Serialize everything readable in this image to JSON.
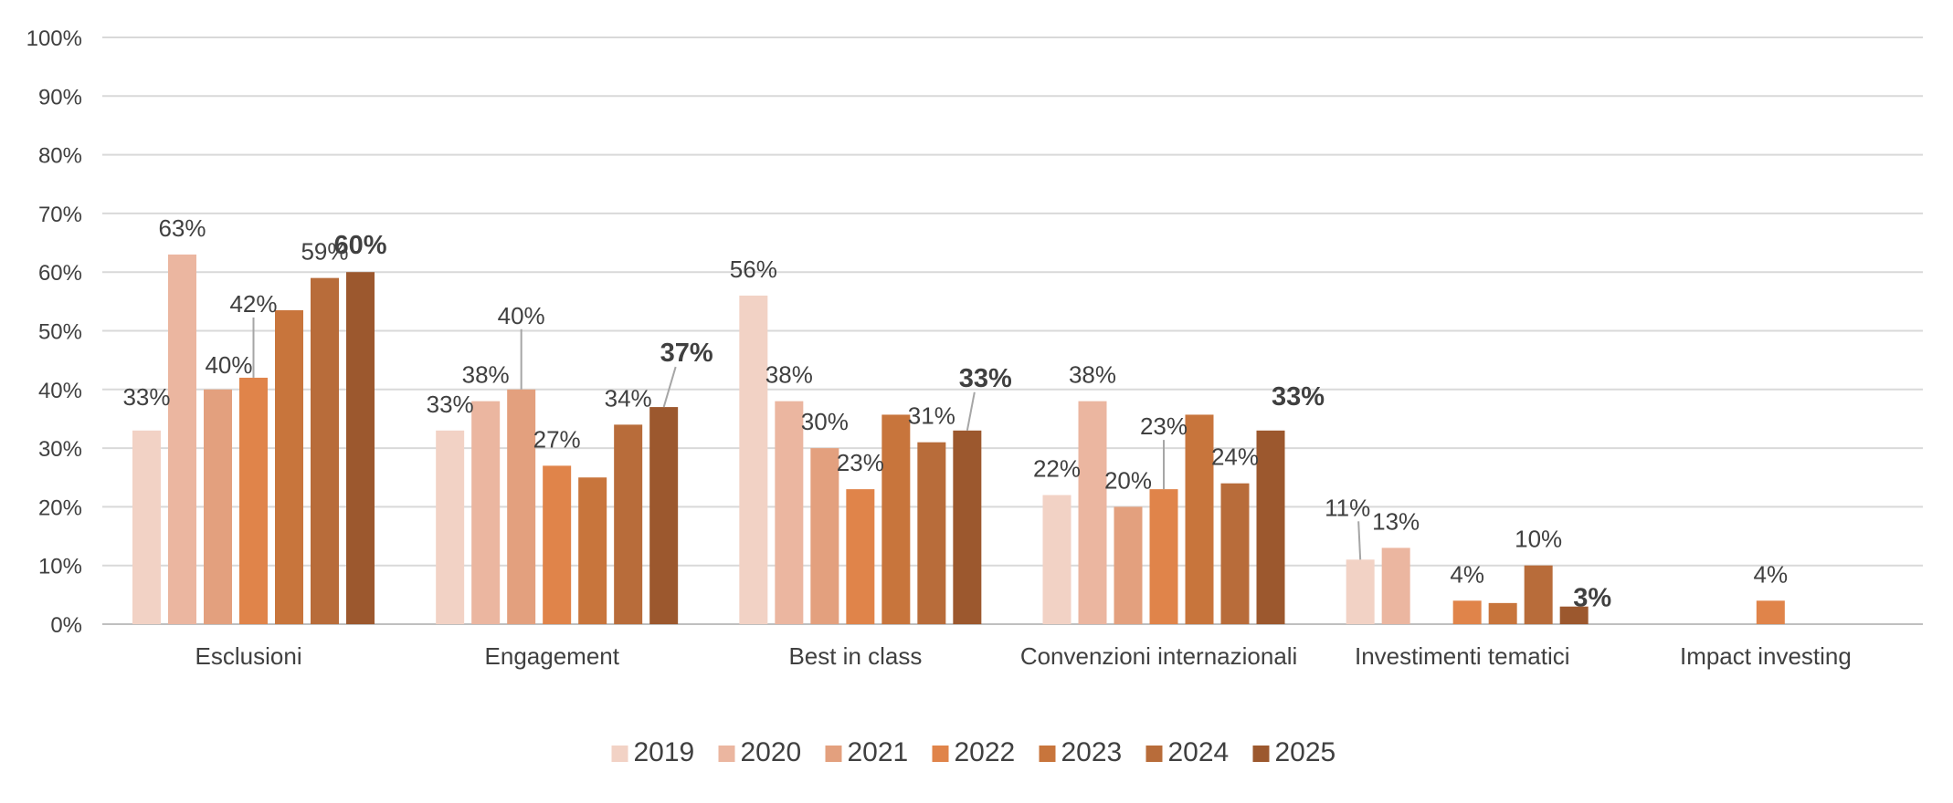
{
  "chart_data": {
    "type": "bar",
    "title": "",
    "xlabel": "",
    "ylabel": "",
    "ylim": [
      0,
      100
    ],
    "yticks": [
      "0%",
      "10%",
      "20%",
      "30%",
      "40%",
      "50%",
      "60%",
      "70%",
      "80%",
      "90%",
      "100%"
    ],
    "grid": true,
    "legend_position": "bottom-center",
    "categories": [
      "Esclusioni",
      "Engagement",
      "Best in class",
      "Convenzioni internazionali",
      "Investimenti tematici",
      "Impact investing"
    ],
    "series": [
      {
        "name": "2019",
        "color": "#F2D2C5",
        "values": [
          33,
          33,
          56,
          22,
          11,
          null
        ],
        "labels": [
          "33%",
          "33%",
          "56%",
          "22%",
          "11%",
          null
        ]
      },
      {
        "name": "2020",
        "color": "#EBB6A0",
        "values": [
          63,
          38,
          38,
          38,
          13,
          null
        ],
        "labels": [
          "63%",
          "38%",
          "38%",
          "38%",
          "13%",
          null
        ]
      },
      {
        "name": "2021",
        "color": "#E3A07E",
        "values": [
          40,
          40,
          30,
          20,
          null,
          null
        ],
        "labels": [
          "40%",
          "40%",
          "30%",
          "20%",
          null,
          null
        ]
      },
      {
        "name": "2022",
        "color": "#E0844A",
        "values": [
          42,
          27,
          23,
          23,
          4,
          4
        ],
        "labels": [
          "42%",
          "27%",
          "23%",
          "23%",
          "4%",
          "4%"
        ]
      },
      {
        "name": "2023",
        "color": "#C8753C",
        "values": [
          53.5,
          25,
          35.7,
          35.7,
          3.6,
          null
        ],
        "labels": [
          null,
          null,
          null,
          null,
          null,
          null
        ]
      },
      {
        "name": "2024",
        "color": "#B86C3A",
        "values": [
          59,
          34,
          31,
          24,
          10,
          null
        ],
        "labels": [
          "59%",
          "34%",
          "31%",
          "24%",
          "10%",
          null
        ]
      },
      {
        "name": "2025",
        "color": "#9C582E",
        "values": [
          60,
          37,
          33,
          33,
          3,
          null
        ],
        "labels": [
          "60%",
          "37%",
          "33%",
          "33%",
          "3%",
          null
        ],
        "bold_labels": true
      }
    ]
  }
}
